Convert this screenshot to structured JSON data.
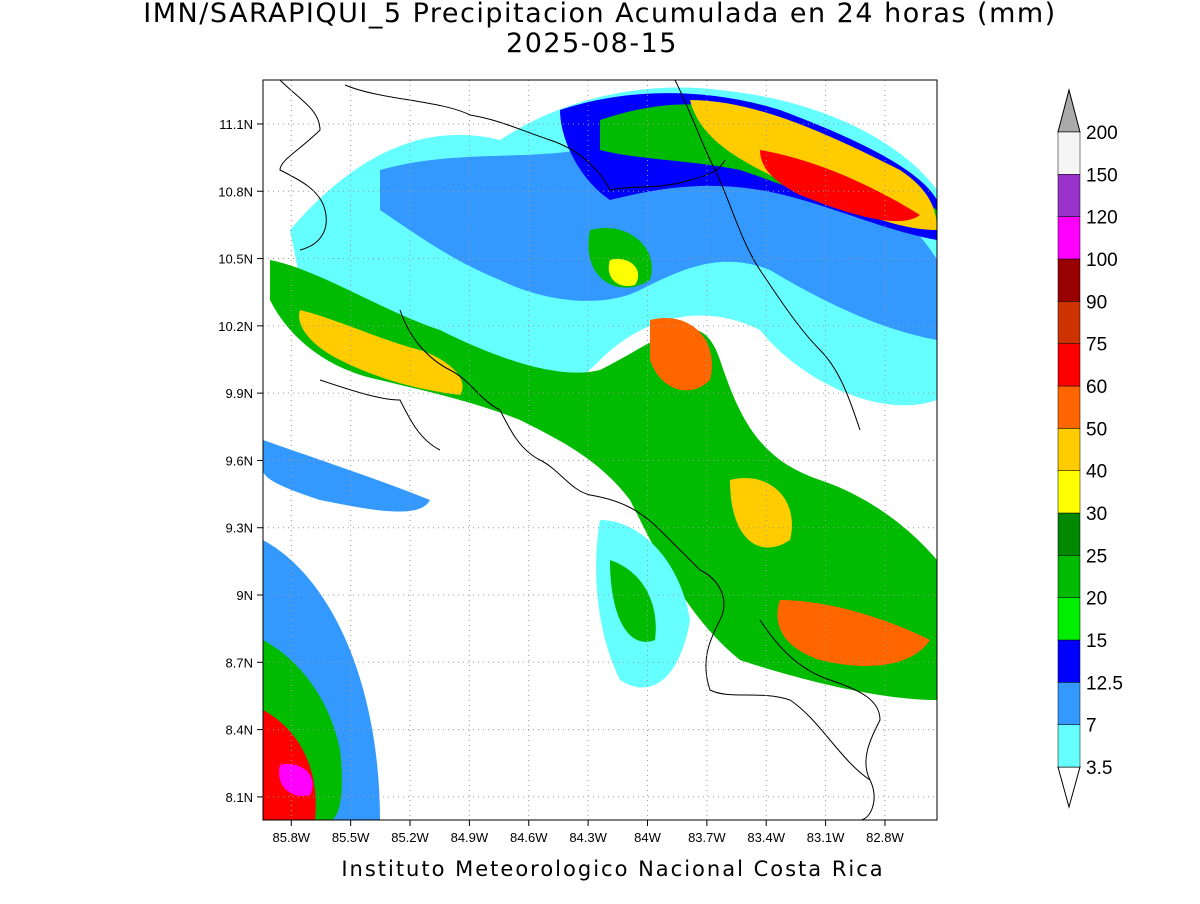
{
  "map": {
    "title": "IMN/SARAPIQUI_5 Precipitacion Acumulada en 24 horas (mm)",
    "subtitle": "2025-08-15",
    "lonlim": [
      -85.943,
      -82.537
    ],
    "latlim": [
      7.997,
      11.296
    ],
    "lon_ticks": [
      {
        "value": -85.8,
        "label": "85.8W"
      },
      {
        "value": -85.5,
        "label": "85.5W"
      },
      {
        "value": -85.2,
        "label": "85.2W"
      },
      {
        "value": -84.9,
        "label": "84.9W"
      },
      {
        "value": -84.6,
        "label": "84.6W"
      },
      {
        "value": -84.3,
        "label": "84.3W"
      },
      {
        "value": -84.0,
        "label": "84W"
      },
      {
        "value": -83.7,
        "label": "83.7W"
      },
      {
        "value": -83.4,
        "label": "83.4W"
      },
      {
        "value": -83.1,
        "label": "83.1W"
      },
      {
        "value": -82.8,
        "label": "82.8W"
      }
    ],
    "lat_ticks": [
      {
        "value": 11.1,
        "label": "11.1N"
      },
      {
        "value": 10.8,
        "label": "10.8N"
      },
      {
        "value": 10.5,
        "label": "10.5N"
      },
      {
        "value": 10.2,
        "label": "10.2N"
      },
      {
        "value": 9.9,
        "label": "9.9N"
      },
      {
        "value": 9.6,
        "label": "9.6N"
      },
      {
        "value": 9.3,
        "label": "9.3N"
      },
      {
        "value": 9.0,
        "label": "9N"
      },
      {
        "value": 8.7,
        "label": "8.7N"
      },
      {
        "value": 8.4,
        "label": "8.4N"
      },
      {
        "value": 8.1,
        "label": "8.1N"
      }
    ],
    "grid": true,
    "colorbar": {
      "levels": [
        3.5,
        7,
        12.5,
        15,
        20,
        25,
        30,
        40,
        50,
        60,
        75,
        90,
        100,
        120,
        150,
        200
      ],
      "colors": [
        "#66ffff",
        "#3399ff",
        "#0000ff",
        "#00ee00",
        "#00bb00",
        "#008800",
        "#ffff00",
        "#ffcc00",
        "#ff6600",
        "#ff0000",
        "#cc3300",
        "#990000",
        "#ff00ff",
        "#9933cc",
        "#f5f5f5"
      ],
      "under_color": "#ffffff",
      "over_color": "#aaaaaa"
    },
    "credit": "Instituto Meteorologico Nacional Costa Rica"
  }
}
